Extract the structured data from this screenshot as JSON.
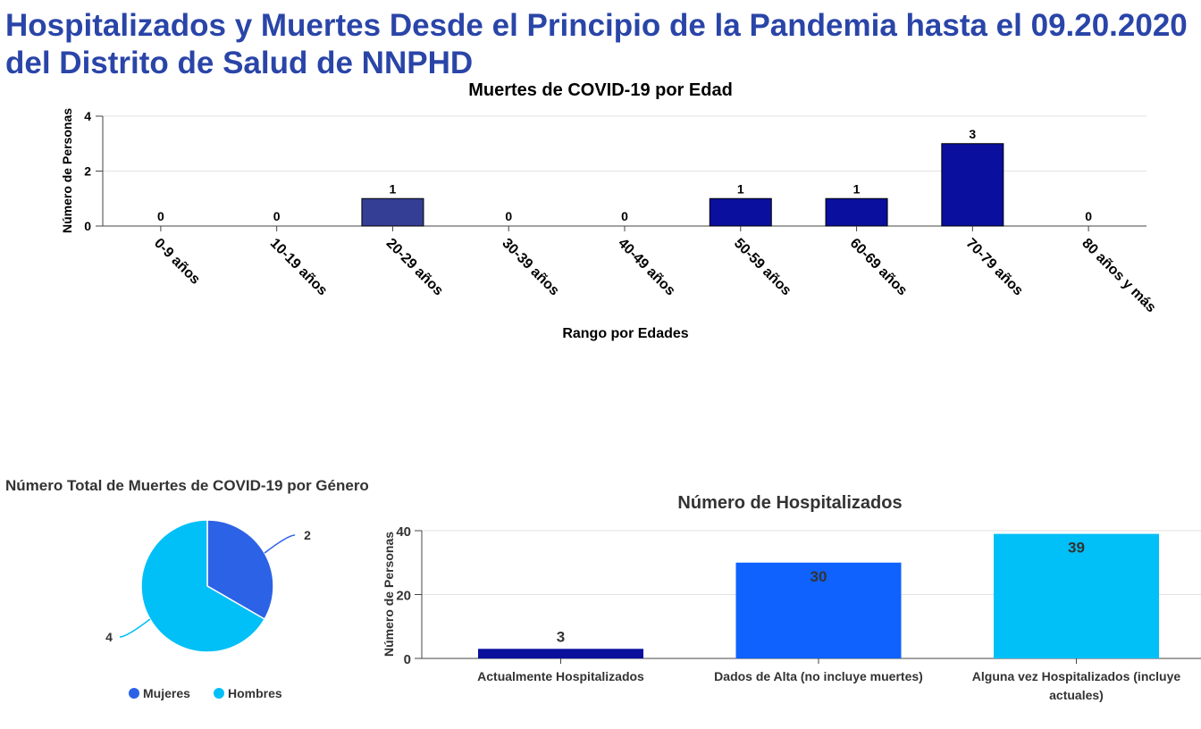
{
  "page": {
    "title": "Hospitalizados y Muertes Desde el Principio de la Pandemia hasta el 09.20.2020 del Distrito de Salud de NNPHD"
  },
  "chart_data": [
    {
      "type": "bar",
      "title": "Muertes de COVID-19 por Edad",
      "xlabel": "Rango por Edades",
      "ylabel": "Número de Personas",
      "categories": [
        "0-9 años",
        "10-19 años",
        "20-29 años",
        "30-39 años",
        "40-49 años",
        "50-59 años",
        "60-69 años",
        "70-79 años",
        "80 años y más"
      ],
      "values": [
        0,
        0,
        1,
        0,
        0,
        1,
        1,
        3,
        0
      ],
      "data_labels": [
        "0",
        "0",
        "1",
        "0",
        "0",
        "1",
        "1",
        "3",
        "0"
      ],
      "ylim": [
        0,
        4
      ],
      "yticks": [
        0,
        2,
        4
      ],
      "grid": true,
      "colors": [
        "#0a0f9e",
        "#0a0f9e",
        "#353e95",
        "#0a0f9e",
        "#0a0f9e",
        "#0a0f9e",
        "#0a0f9e",
        "#0a0f9e",
        "#0a0f9e"
      ]
    },
    {
      "type": "pie",
      "title": "Número Total de Muertes de COVID-19 por Género",
      "slices": [
        {
          "name": "Mujeres",
          "value": 2,
          "label": "2",
          "color": "#2c62e6"
        },
        {
          "name": "Hombres",
          "value": 4,
          "label": "4",
          "color": "#00c0f7"
        }
      ],
      "legend": "bottom"
    },
    {
      "type": "bar",
      "title": "Número de Hospitalizados",
      "ylabel": "Número de Personas",
      "categories": [
        [
          "Actualmente Hospitalizados"
        ],
        [
          "Dados de Alta (no incluye muertes)"
        ],
        [
          "Alguna vez Hospitalizados (incluye",
          "actuales)"
        ]
      ],
      "values": [
        3,
        30,
        39
      ],
      "data_labels": [
        "3",
        "30",
        "39"
      ],
      "ylim": [
        0,
        40
      ],
      "yticks": [
        0,
        20,
        40
      ],
      "grid": true,
      "colors": [
        "#0a0f9e",
        "#0f62fe",
        "#00c0f7"
      ]
    }
  ]
}
